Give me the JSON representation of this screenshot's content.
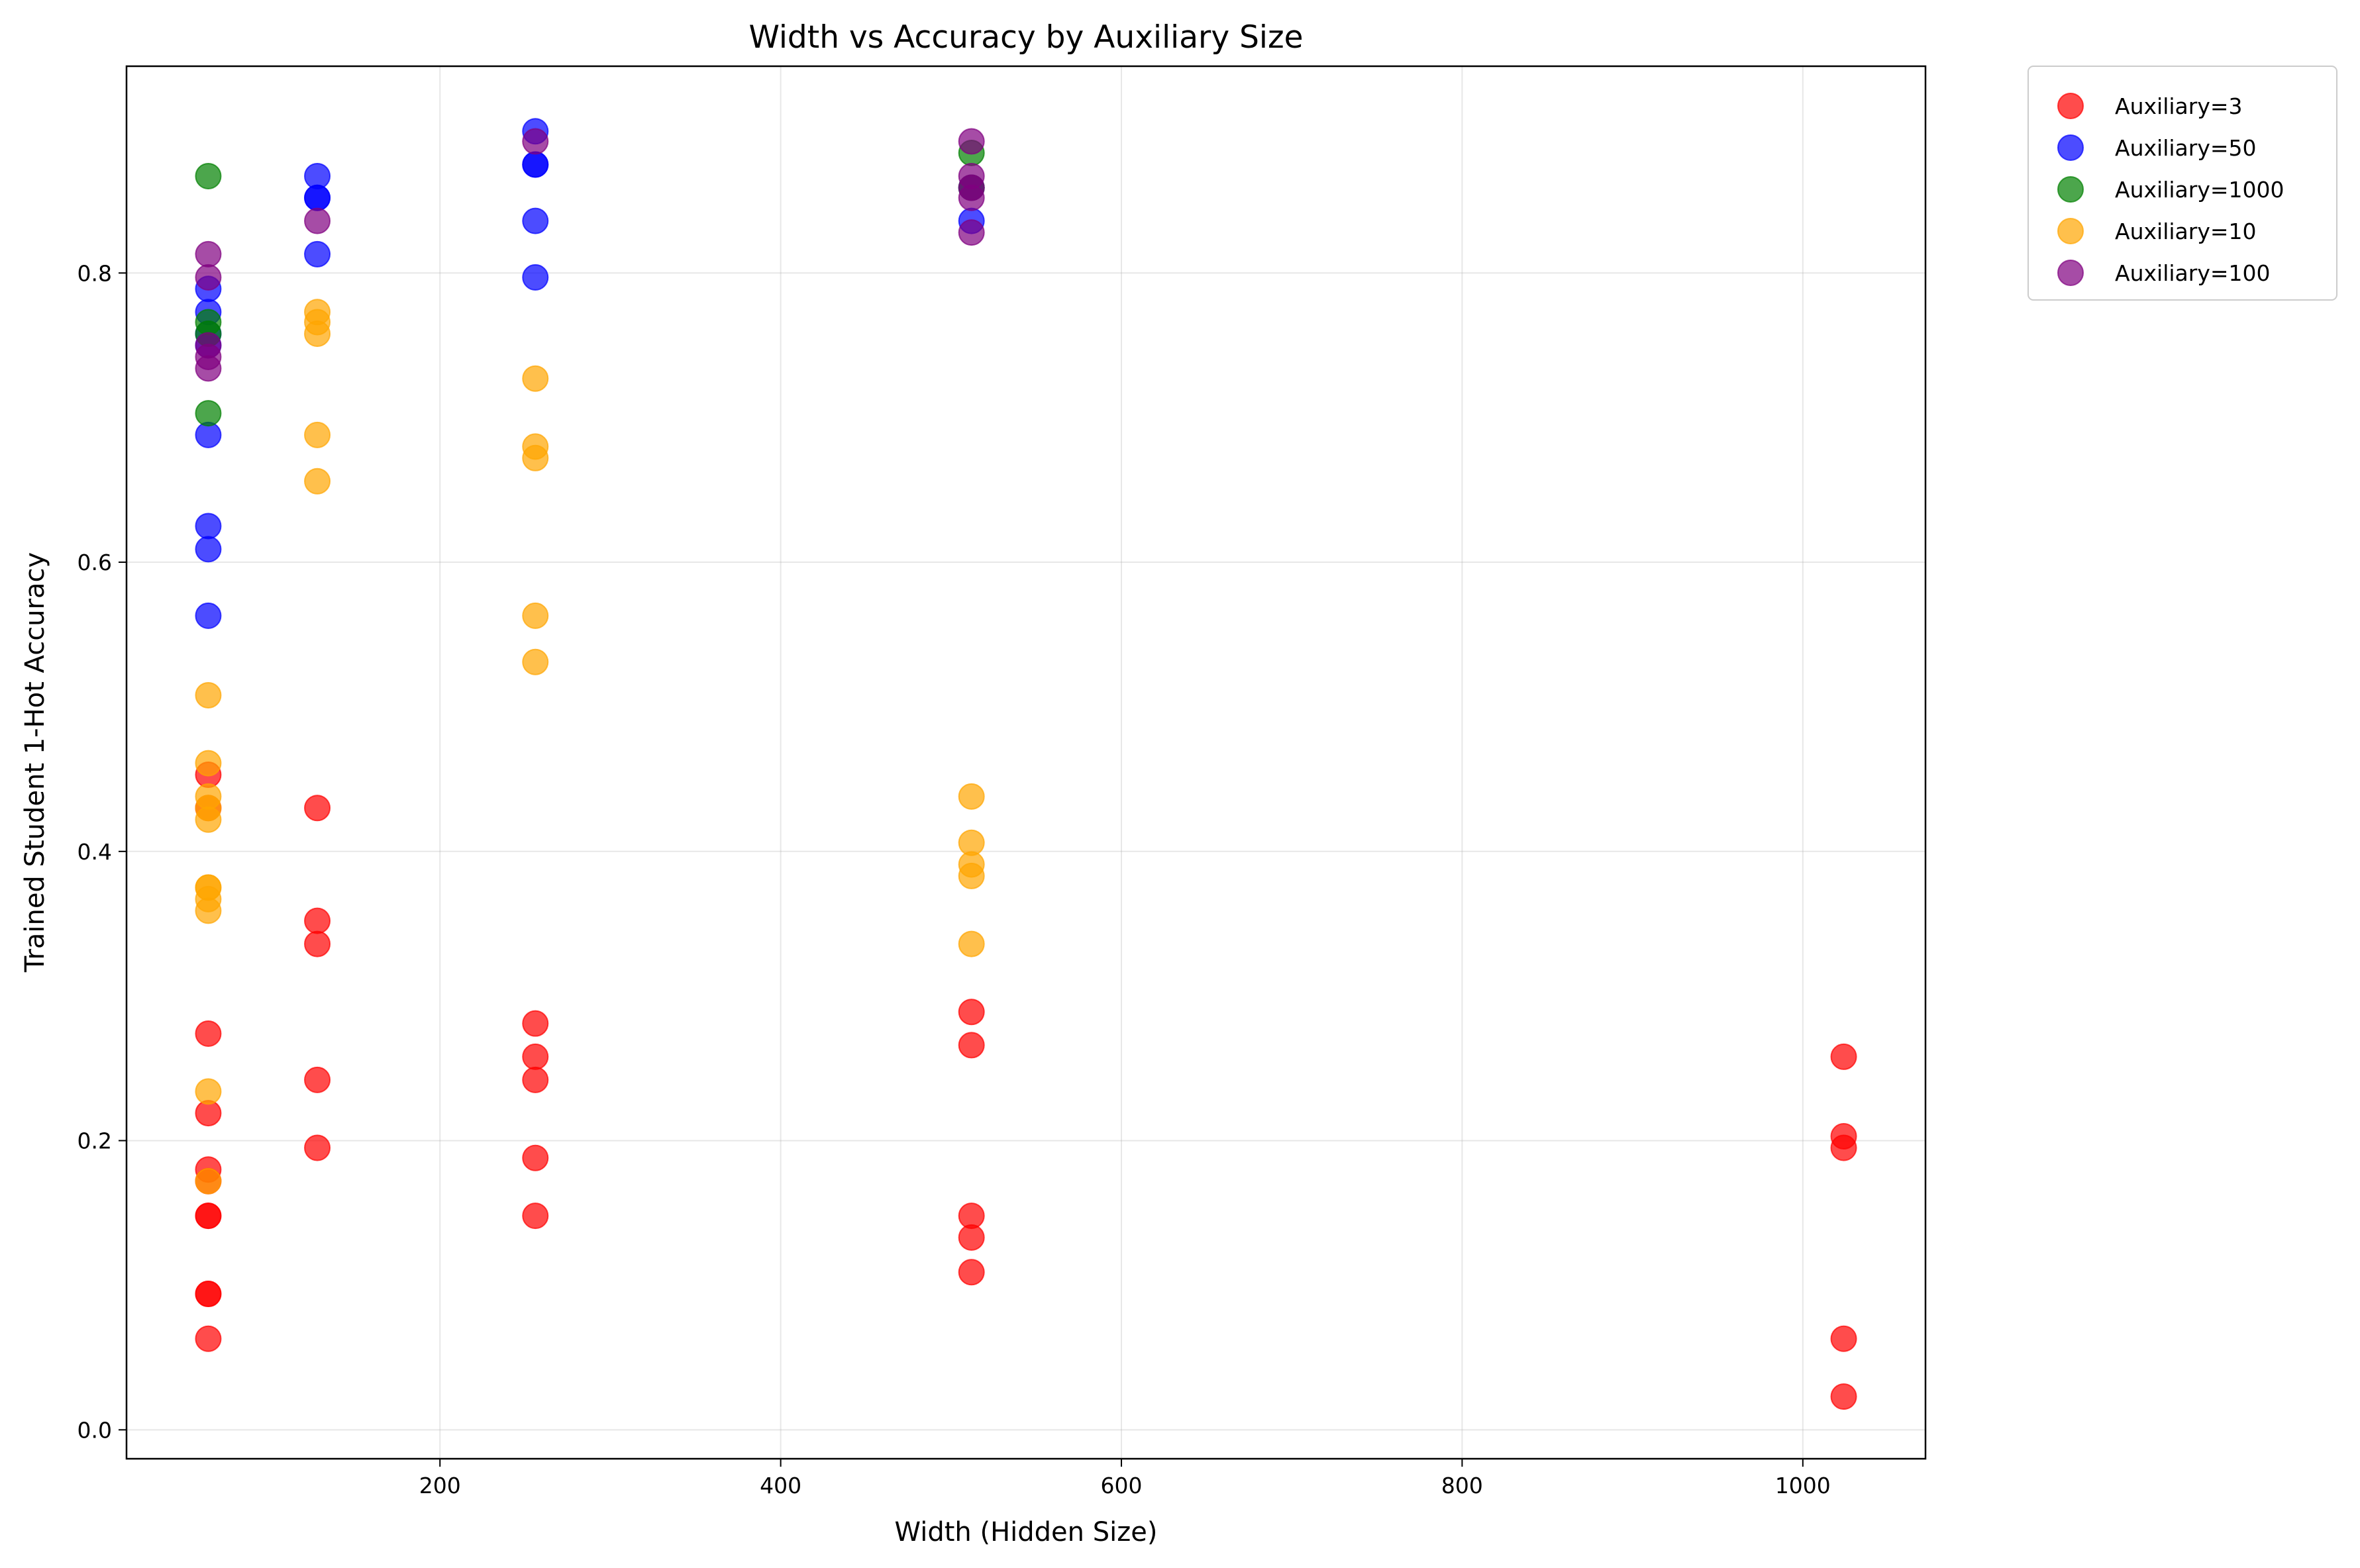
{
  "chart_data": {
    "type": "scatter",
    "title": "Width vs Accuracy by Auxiliary Size",
    "xlabel": "Width (Hidden Size)",
    "ylabel": "Trained Student 1-Hot Accuracy",
    "xlim": [
      16,
      1072
    ],
    "ylim": [
      -0.02,
      0.943
    ],
    "xticks": [
      200,
      400,
      600,
      800,
      1000
    ],
    "yticks": [
      0.0,
      0.2,
      0.4,
      0.6,
      0.8
    ],
    "xtick_labels": [
      "200",
      "400",
      "600",
      "800",
      "1000"
    ],
    "ytick_labels": [
      "0.0",
      "0.2",
      "0.4",
      "0.6",
      "0.8"
    ],
    "grid": true,
    "legend_position": "outside top-right",
    "series": [
      {
        "name": "Auxiliary=3",
        "color": "#ff0000",
        "points": [
          [
            64,
            0.453
          ],
          [
            64,
            0.43
          ],
          [
            64,
            0.274
          ],
          [
            64,
            0.219
          ],
          [
            64,
            0.18
          ],
          [
            64,
            0.172
          ],
          [
            64,
            0.148
          ],
          [
            64,
            0.148
          ],
          [
            64,
            0.094
          ],
          [
            64,
            0.094
          ],
          [
            64,
            0.063
          ],
          [
            128,
            0.43
          ],
          [
            128,
            0.352
          ],
          [
            128,
            0.336
          ],
          [
            128,
            0.242
          ],
          [
            128,
            0.195
          ],
          [
            256,
            0.281
          ],
          [
            256,
            0.258
          ],
          [
            256,
            0.242
          ],
          [
            256,
            0.188
          ],
          [
            256,
            0.148
          ],
          [
            512,
            0.289
          ],
          [
            512,
            0.266
          ],
          [
            512,
            0.148
          ],
          [
            512,
            0.133
          ],
          [
            512,
            0.109
          ],
          [
            1024,
            0.258
          ],
          [
            1024,
            0.203
          ],
          [
            1024,
            0.195
          ],
          [
            1024,
            0.063
          ],
          [
            1024,
            0.023
          ]
        ]
      },
      {
        "name": "Auxiliary=50",
        "color": "#0000ff",
        "points": [
          [
            64,
            0.789
          ],
          [
            64,
            0.773
          ],
          [
            64,
            0.758
          ],
          [
            64,
            0.75
          ],
          [
            64,
            0.688
          ],
          [
            64,
            0.625
          ],
          [
            64,
            0.609
          ],
          [
            64,
            0.563
          ],
          [
            128,
            0.867
          ],
          [
            128,
            0.852
          ],
          [
            128,
            0.852
          ],
          [
            128,
            0.813
          ],
          [
            256,
            0.898
          ],
          [
            256,
            0.875
          ],
          [
            256,
            0.875
          ],
          [
            256,
            0.836
          ],
          [
            256,
            0.797
          ],
          [
            512,
            0.836
          ],
          [
            512,
            0.859
          ]
        ]
      },
      {
        "name": "Auxiliary=1000",
        "color": "#008000",
        "points": [
          [
            64,
            0.867
          ],
          [
            64,
            0.766
          ],
          [
            64,
            0.758
          ],
          [
            64,
            0.703
          ],
          [
            512,
            0.883
          ],
          [
            512,
            0.859
          ]
        ]
      },
      {
        "name": "Auxiliary=10",
        "color": "#ffa500",
        "points": [
          [
            64,
            0.508
          ],
          [
            64,
            0.461
          ],
          [
            64,
            0.438
          ],
          [
            64,
            0.43
          ],
          [
            64,
            0.422
          ],
          [
            64,
            0.375
          ],
          [
            64,
            0.375
          ],
          [
            64,
            0.367
          ],
          [
            64,
            0.359
          ],
          [
            64,
            0.234
          ],
          [
            64,
            0.172
          ],
          [
            128,
            0.773
          ],
          [
            128,
            0.766
          ],
          [
            128,
            0.758
          ],
          [
            128,
            0.688
          ],
          [
            128,
            0.656
          ],
          [
            256,
            0.727
          ],
          [
            256,
            0.68
          ],
          [
            256,
            0.672
          ],
          [
            256,
            0.563
          ],
          [
            256,
            0.531
          ],
          [
            512,
            0.438
          ],
          [
            512,
            0.406
          ],
          [
            512,
            0.391
          ],
          [
            512,
            0.383
          ],
          [
            512,
            0.336
          ]
        ]
      },
      {
        "name": "Auxiliary=100",
        "color": "#800080",
        "points": [
          [
            64,
            0.813
          ],
          [
            64,
            0.797
          ],
          [
            64,
            0.75
          ],
          [
            64,
            0.742
          ],
          [
            64,
            0.734
          ],
          [
            128,
            0.836
          ],
          [
            256,
            0.891
          ],
          [
            512,
            0.891
          ],
          [
            512,
            0.867
          ],
          [
            512,
            0.859
          ],
          [
            512,
            0.852
          ],
          [
            512,
            0.828
          ]
        ]
      }
    ]
  }
}
